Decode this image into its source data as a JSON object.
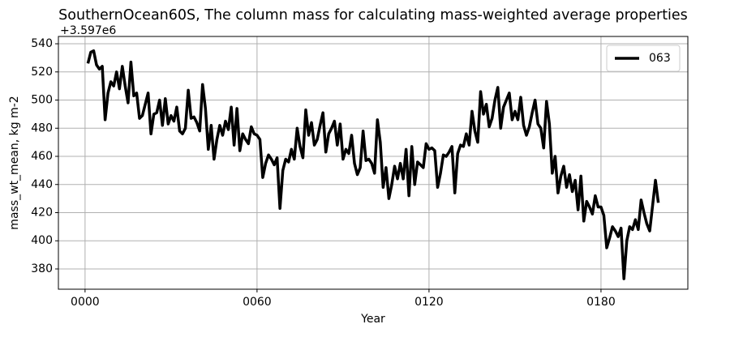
{
  "chart_data": {
    "type": "line",
    "title": "SouthernOcean60S, The column mass for calculating mass-weighted average properties",
    "xlabel": "Year",
    "ylabel": "mass_wt_mean, kg m-2",
    "y_offset_text": "+3.597e6",
    "x": [
      1,
      2,
      3,
      4,
      5,
      6,
      7,
      8,
      9,
      10,
      11,
      12,
      13,
      14,
      15,
      16,
      17,
      18,
      19,
      20,
      21,
      22,
      23,
      24,
      25,
      26,
      27,
      28,
      29,
      30,
      31,
      32,
      33,
      34,
      35,
      36,
      37,
      38,
      39,
      40,
      41,
      42,
      43,
      44,
      45,
      46,
      47,
      48,
      49,
      50,
      51,
      52,
      53,
      54,
      55,
      56,
      57,
      58,
      59,
      60,
      61,
      62,
      63,
      64,
      65,
      66,
      67,
      68,
      69,
      70,
      71,
      72,
      73,
      74,
      75,
      76,
      77,
      78,
      79,
      80,
      81,
      82,
      83,
      84,
      85,
      86,
      87,
      88,
      89,
      90,
      91,
      92,
      93,
      94,
      95,
      96,
      97,
      98,
      99,
      100,
      101,
      102,
      103,
      104,
      105,
      106,
      107,
      108,
      109,
      110,
      111,
      112,
      113,
      114,
      115,
      116,
      117,
      118,
      119,
      120,
      121,
      122,
      123,
      124,
      125,
      126,
      127,
      128,
      129,
      130,
      131,
      132,
      133,
      134,
      135,
      136,
      137,
      138,
      139,
      140,
      141,
      142,
      143,
      144,
      145,
      146,
      147,
      148,
      149,
      150,
      151,
      152,
      153,
      154,
      155,
      156,
      157,
      158,
      159,
      160,
      161,
      162,
      163,
      164,
      165,
      166,
      167,
      168,
      169,
      170,
      171,
      172,
      173,
      174,
      175,
      176,
      177,
      178,
      179,
      180,
      181,
      182,
      183,
      184,
      185,
      186,
      187,
      188,
      189,
      190,
      191,
      192,
      193,
      194,
      195,
      196,
      197,
      198,
      199,
      200
    ],
    "series": [
      {
        "name": "063",
        "color": "#000000",
        "values": [
          526,
          534,
          535,
          525,
          522,
          524,
          486,
          505,
          513,
          510,
          520,
          508,
          524,
          510,
          498,
          527,
          503,
          505,
          487,
          489,
          497,
          505,
          476,
          490,
          491,
          500,
          482,
          501,
          483,
          489,
          485,
          495,
          478,
          476,
          480,
          507,
          487,
          488,
          484,
          478,
          511,
          494,
          465,
          482,
          458,
          472,
          482,
          475,
          485,
          479,
          495,
          468,
          494,
          464,
          476,
          472,
          469,
          481,
          476,
          475,
          472,
          445,
          455,
          461,
          458,
          454,
          459,
          423,
          450,
          458,
          456,
          465,
          458,
          480,
          467,
          459,
          493,
          475,
          484,
          468,
          472,
          482,
          491,
          463,
          476,
          480,
          485,
          468,
          483,
          458,
          465,
          462,
          475,
          455,
          447,
          452,
          478,
          457,
          458,
          455,
          448,
          486,
          470,
          438,
          452,
          430,
          440,
          453,
          444,
          455,
          444,
          465,
          432,
          467,
          440,
          456,
          454,
          452,
          469,
          465,
          466,
          464,
          438,
          448,
          461,
          460,
          463,
          467,
          434,
          462,
          468,
          467,
          476,
          468,
          492,
          478,
          470,
          506,
          490,
          497,
          481,
          487,
          500,
          509,
          480,
          495,
          500,
          505,
          486,
          492,
          486,
          502,
          482,
          475,
          481,
          491,
          500,
          483,
          480,
          466,
          499,
          483,
          448,
          460,
          434,
          446,
          453,
          438,
          447,
          435,
          443,
          422,
          446,
          414,
          428,
          424,
          419,
          432,
          424,
          424,
          418,
          395,
          402,
          410,
          407,
          403,
          409,
          373,
          400,
          410,
          408,
          415,
          408,
          429,
          420,
          412,
          407,
          425,
          443,
          427
        ]
      }
    ],
    "xlim": [
      -9.3,
      210.3
    ],
    "ylim": [
      365.6,
      545.2
    ],
    "xticks": [
      {
        "value": 0,
        "label": "0000"
      },
      {
        "value": 60,
        "label": "0060"
      },
      {
        "value": 120,
        "label": "0120"
      },
      {
        "value": 180,
        "label": "0180"
      }
    ],
    "yticks": [
      380,
      400,
      420,
      440,
      460,
      480,
      500,
      520,
      540
    ],
    "grid": true,
    "legend": "upper right"
  }
}
